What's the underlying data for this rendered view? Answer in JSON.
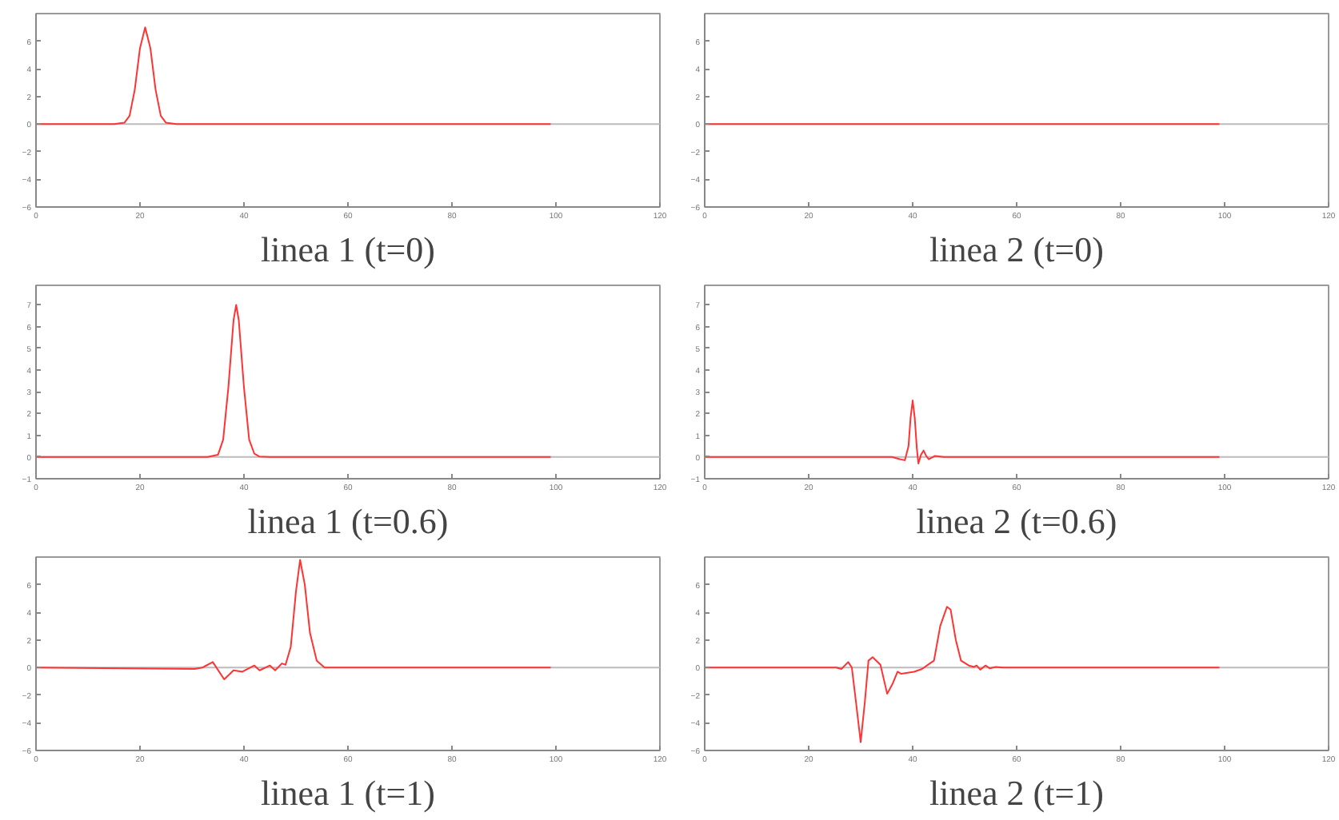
{
  "chart_data": [
    {
      "type": "line",
      "title": "linea 1 (t=0)",
      "xlim": [
        0,
        120
      ],
      "xticks": [
        0,
        20,
        40,
        60,
        80,
        100,
        120
      ],
      "ylim": [
        -6,
        8
      ],
      "yticks": [
        -6,
        -4,
        -2,
        0,
        2,
        4,
        6
      ],
      "ref_lines": [
        {
          "axis": "y",
          "value": 0,
          "color": "#bbbbbb"
        }
      ],
      "series": [
        {
          "color": "#ff3333",
          "x": [
            0,
            15,
            17,
            18,
            19,
            20,
            21,
            22,
            23,
            24,
            25,
            27,
            99
          ],
          "values": [
            0,
            0,
            0.1,
            0.6,
            2.5,
            5.5,
            7,
            5.5,
            2.5,
            0.6,
            0.1,
            0,
            0
          ]
        }
      ]
    },
    {
      "type": "line",
      "title": "linea 2 (t=0)",
      "xlim": [
        0,
        120
      ],
      "xticks": [
        0,
        20,
        40,
        60,
        80,
        100,
        120
      ],
      "ylim": [
        -6,
        8
      ],
      "yticks": [
        -6,
        -4,
        -2,
        0,
        2,
        4,
        6
      ],
      "ref_lines": [
        {
          "axis": "y",
          "value": 0,
          "color": "#bbbbbb"
        }
      ],
      "series": [
        {
          "color": "#ff3333",
          "x": [
            0,
            99
          ],
          "values": [
            0,
            0
          ]
        }
      ]
    },
    {
      "type": "line",
      "title": "linea 1 (t=0.6)",
      "xlim": [
        0,
        120
      ],
      "xticks": [
        0,
        20,
        40,
        60,
        80,
        100,
        120
      ],
      "ylim": [
        -1,
        7.9
      ],
      "yticks": [
        -1,
        0,
        1,
        2,
        3,
        4,
        5,
        6,
        7
      ],
      "ref_lines": [
        {
          "axis": "y",
          "value": 0,
          "color": "#bbbbbb"
        }
      ],
      "series": [
        {
          "color": "#ff3333",
          "x": [
            0,
            33,
            35,
            36,
            37,
            38,
            38.5,
            39,
            40,
            41,
            42,
            43,
            45,
            99
          ],
          "values": [
            0,
            0,
            0.1,
            0.8,
            3.2,
            6.3,
            7,
            6.3,
            3.2,
            0.8,
            0.15,
            0.02,
            0,
            0
          ]
        }
      ]
    },
    {
      "type": "line",
      "title": "linea 2 (t=0.6)",
      "xlim": [
        0,
        120
      ],
      "xticks": [
        0,
        20,
        40,
        60,
        80,
        100,
        120
      ],
      "ylim": [
        -1,
        7.9
      ],
      "yticks": [
        -1,
        0,
        1,
        2,
        3,
        4,
        5,
        6,
        7
      ],
      "ref_lines": [
        {
          "axis": "y",
          "value": 0,
          "color": "#bbbbbb"
        }
      ],
      "series": [
        {
          "color": "#ff3333",
          "x": [
            0,
            36,
            37.5,
            38.5,
            39.2,
            39.6,
            40,
            40.4,
            40.8,
            41.1,
            41.6,
            42.1,
            42.6,
            43.1,
            44.3,
            46,
            99
          ],
          "values": [
            0,
            0,
            -0.1,
            -0.15,
            0.5,
            1.8,
            2.6,
            1.8,
            0.4,
            -0.3,
            0.1,
            0.3,
            0.05,
            -0.1,
            0.05,
            0,
            0
          ]
        }
      ]
    },
    {
      "type": "line",
      "title": "linea 1 (t=1)",
      "xlim": [
        0,
        120
      ],
      "xticks": [
        0,
        20,
        40,
        60,
        80,
        100,
        120
      ],
      "ylim": [
        -6,
        8
      ],
      "yticks": [
        -6,
        -4,
        -2,
        0,
        2,
        4,
        6
      ],
      "ref_lines": [
        {
          "axis": "y",
          "value": 0,
          "color": "#bbbbbb"
        }
      ],
      "series": [
        {
          "color": "#ff3333",
          "x": [
            0,
            30.5,
            32,
            34,
            36.2,
            38,
            39.7,
            42,
            43,
            45,
            46,
            47.3,
            48,
            49,
            50,
            50.8,
            51.7,
            52.7,
            54,
            55.5,
            99
          ],
          "values": [
            0,
            -0.1,
            0,
            0.4,
            -0.85,
            -0.2,
            -0.3,
            0.15,
            -0.2,
            0.15,
            -0.2,
            0.3,
            0.2,
            1.5,
            5.5,
            7.8,
            6,
            2.5,
            0.5,
            0,
            0
          ]
        }
      ]
    },
    {
      "type": "line",
      "title": "linea 2 (t=1)",
      "xlim": [
        0,
        120
      ],
      "xticks": [
        0,
        20,
        40,
        60,
        80,
        100,
        120
      ],
      "ylim": [
        -6,
        8
      ],
      "yticks": [
        -6,
        -4,
        -2,
        0,
        2,
        4,
        6
      ],
      "ref_lines": [
        {
          "axis": "y",
          "value": 0,
          "color": "#bbbbbb"
        }
      ],
      "series": [
        {
          "color": "#ff3333",
          "x": [
            0,
            25.3,
            26.3,
            27.6,
            28.3,
            29.1,
            30,
            30.8,
            31.5,
            32.3,
            33.8,
            35.1,
            36.1,
            37.1,
            37.8,
            40.3,
            41.8,
            43.3,
            44.1,
            45.3,
            46.6,
            47.3,
            48.3,
            49.3,
            50.8,
            51.8,
            52.3,
            53,
            54,
            54.8,
            56,
            57.3,
            99
          ],
          "values": [
            0,
            0,
            -0.1,
            0.4,
            0,
            -2.5,
            -5.4,
            -2.5,
            0.5,
            0.75,
            0.2,
            -1.9,
            -1.2,
            -0.3,
            -0.45,
            -0.3,
            -0.1,
            0.3,
            0.5,
            3,
            4.4,
            4.2,
            2,
            0.5,
            0.15,
            0.05,
            0.15,
            -0.15,
            0.15,
            -0.05,
            0.05,
            0,
            0
          ]
        }
      ]
    }
  ]
}
